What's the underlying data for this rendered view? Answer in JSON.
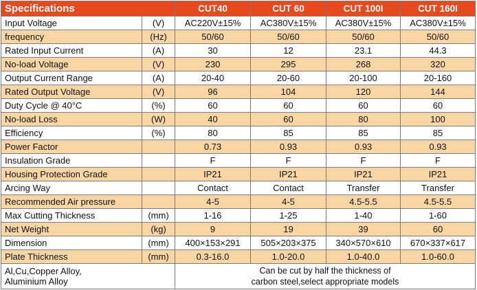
{
  "header": {
    "title": "Specifications",
    "models": [
      "CUT40",
      "CUT 60",
      "CUT 100I",
      "CUT 160I"
    ]
  },
  "rows": [
    {
      "label": "Input Voltage",
      "unit": "(V)",
      "values": [
        "AC220V±15%",
        "AC380V±15%",
        "AC380V±15%",
        "AC380V±15%"
      ],
      "shaded": false
    },
    {
      "label": "frequency",
      "unit": "(Hz)",
      "values": [
        "50/60",
        "50/60",
        "50/60",
        "50/60"
      ],
      "shaded": true
    },
    {
      "label": "Rated Input Current",
      "unit": "(A)",
      "values": [
        "30",
        "12",
        "23.1",
        "44.3"
      ],
      "shaded": false
    },
    {
      "label": "No-load Voltage",
      "unit": "(V)",
      "values": [
        "230",
        "295",
        "268",
        "320"
      ],
      "shaded": true
    },
    {
      "label": "Output Current Range",
      "unit": "(A)",
      "values": [
        "20-40",
        "20-60",
        "20-100",
        "20-160"
      ],
      "shaded": false
    },
    {
      "label": "Rated Output Voltage",
      "unit": "(V)",
      "values": [
        "96",
        "104",
        "120",
        "144"
      ],
      "shaded": true
    },
    {
      "label": "Duty Cycle  @ 40°C",
      "unit": "(%)",
      "values": [
        "60",
        "60",
        "60",
        "60"
      ],
      "shaded": false
    },
    {
      "label": "No-load Loss",
      "unit": "(W)",
      "values": [
        "40",
        "60",
        "80",
        "100"
      ],
      "shaded": true
    },
    {
      "label": "Efficiency",
      "unit": "(%)",
      "values": [
        "80",
        "85",
        "85",
        "85"
      ],
      "shaded": false
    },
    {
      "label": "Power Factor",
      "unit": "",
      "values": [
        "0.73",
        "0.93",
        "0.93",
        "0.93"
      ],
      "shaded": true
    },
    {
      "label": "Insulation Grade",
      "unit": "",
      "values": [
        "F",
        "F",
        "F",
        "F"
      ],
      "shaded": false
    },
    {
      "label": "Housing Protection Grade",
      "unit": "",
      "values": [
        "IP21",
        "IP21",
        "IP21",
        "IP21"
      ],
      "shaded": true
    },
    {
      "label": "Arcing Way",
      "unit": "",
      "values": [
        "Contact",
        "Contact",
        "Transfer",
        "Transfer"
      ],
      "shaded": false
    },
    {
      "label": "Recommended Air pressure",
      "unit": "",
      "values": [
        "4-5",
        "4-5",
        "4.5-5.5",
        "4.5-5.5"
      ],
      "shaded": true
    },
    {
      "label": "Max Cutting Thickness",
      "unit": "(mm)",
      "values": [
        "1-16",
        "1-25",
        "1-40",
        "1-60"
      ],
      "shaded": false
    },
    {
      "label": "Net Weight",
      "unit": "(kg)",
      "values": [
        "9",
        "19",
        "39",
        "60"
      ],
      "shaded": true
    },
    {
      "label": "Dimension",
      "unit": "(mm)",
      "values": [
        "400×153×291",
        "505×203×375",
        "340×570×610",
        "670×337×617"
      ],
      "shaded": false
    },
    {
      "label": "Plate Thickness",
      "unit": "(mm)",
      "values": [
        "0.3-16.0",
        "1.0-20.0",
        "1.0-40.0",
        "1.0-60.0"
      ],
      "shaded": true
    }
  ],
  "note": {
    "label_line1": "Al,Cu,Copper Alloy,",
    "label_line2": "Aluminium Alloy",
    "text_line1": "Can be cut by half the thickness of",
    "text_line2": "carbon steel,select appropriate models"
  },
  "colors": {
    "header_bg": "#e8491f",
    "shaded_row_bg": "#fbd6a5",
    "border": "#7a7a7a"
  }
}
